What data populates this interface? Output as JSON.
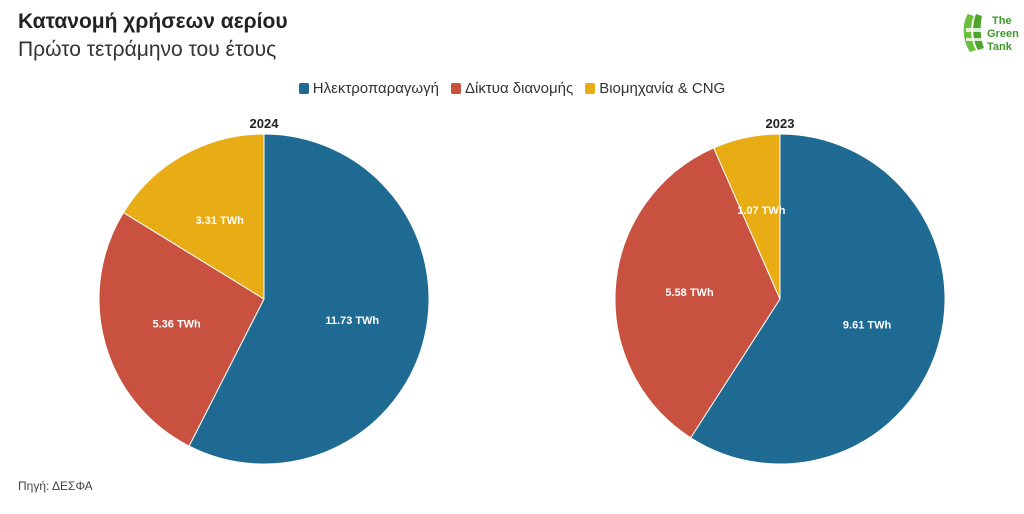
{
  "header": {
    "title": "Κατανομή χρήσεων αερίου",
    "subtitle": "Πρώτο τετράμηνο του έτους"
  },
  "logo": {
    "line1": "The",
    "line2": "Green",
    "line3": "Tank"
  },
  "colors": {
    "electricity": "#1f6a93",
    "networks": "#c85140",
    "industry": "#e8ac14"
  },
  "legend": [
    {
      "label": "Ηλεκτροπαραγωγή",
      "color": "#1f6a93"
    },
    {
      "label": "Δίκτυα διανομής",
      "color": "#c85140"
    },
    {
      "label": "Βιομηχανία & CNG",
      "color": "#e8ac14"
    }
  ],
  "source": "Πηγή: ΔΕΣΦΑ",
  "chart_data": [
    {
      "type": "pie",
      "title": "2024",
      "categories": [
        "Ηλεκτροπαραγωγή",
        "Δίκτυα διανομής",
        "Βιομηχανία & CNG"
      ],
      "values": [
        11.73,
        5.36,
        3.31
      ],
      "labels": [
        "11.73 TWh",
        "5.36 TWh",
        "3.31 TWh"
      ],
      "unit": "TWh"
    },
    {
      "type": "pie",
      "title": "2023",
      "categories": [
        "Ηλεκτροπαραγωγή",
        "Δίκτυα διανομής",
        "Βιομηχανία & CNG"
      ],
      "values": [
        9.61,
        5.58,
        1.07
      ],
      "labels": [
        "9.61 TWh",
        "5.58 TWh",
        "1.07 TWh"
      ],
      "unit": "TWh"
    }
  ]
}
